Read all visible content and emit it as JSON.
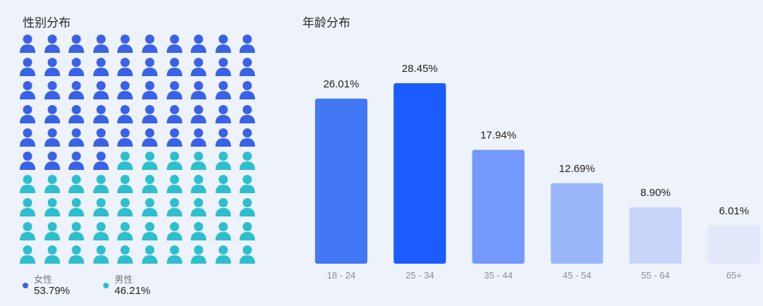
{
  "gender": {
    "title": "性别分布",
    "female": {
      "label": "女性",
      "value_text": "53.79%",
      "count": 54,
      "color": "#3a62e6"
    },
    "male": {
      "label": "男性",
      "value_text": "46.21%",
      "count": 46,
      "color": "#2dbfce"
    },
    "icon": "person-icon"
  },
  "chart_data": {
    "type": "bar",
    "title": "年龄分布",
    "categories": [
      "18 - 24",
      "25 - 34",
      "35 - 44",
      "45 - 54",
      "55 - 64",
      "65+"
    ],
    "values": [
      26.01,
      28.45,
      17.94,
      12.69,
      8.9,
      6.01
    ],
    "value_labels": [
      "26.01%",
      "28.45%",
      "17.94%",
      "12.69%",
      "8.90%",
      "6.01%"
    ],
    "colors": [
      "#4378f5",
      "#1a5cff",
      "#7299fb",
      "#9ab7fc",
      "#c7d5fb",
      "#e3e8fb"
    ],
    "ylim": [
      0,
      30
    ],
    "grid": false,
    "xlabel": "",
    "ylabel": ""
  }
}
